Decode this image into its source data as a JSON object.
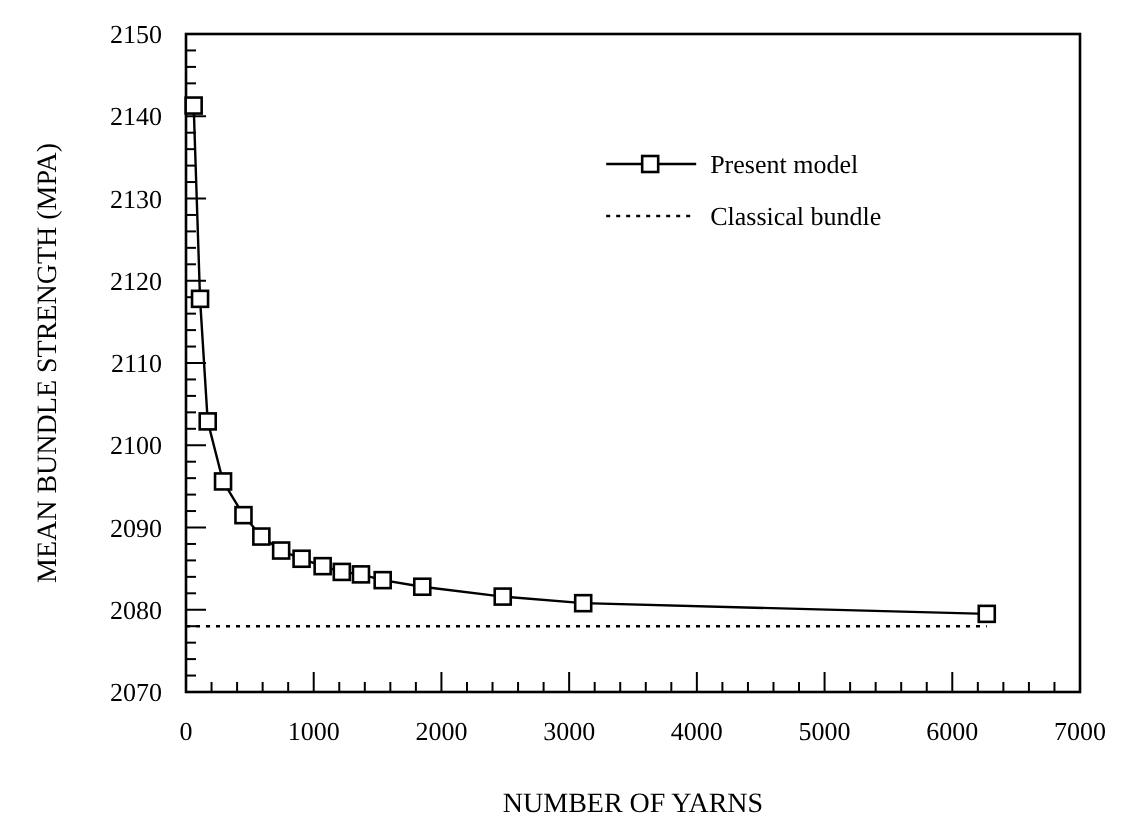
{
  "chart_data": {
    "type": "line",
    "xlabel": "NUMBER OF YARNS",
    "ylabel": "MEAN BUNDLE STRENGTH (MPA)",
    "xlim": [
      0,
      7000
    ],
    "ylim": [
      2070,
      2150
    ],
    "xticks": [
      0,
      {
        "value": 200,
        "label": null
      },
      {
        "value": 400,
        "label": null
      },
      {
        "value": 600,
        "label": null
      },
      {
        "value": 800,
        "label": null
      },
      1000,
      {
        "value": 1200,
        "label": null
      },
      {
        "value": 1400,
        "label": null
      },
      {
        "value": 1600,
        "label": null
      },
      {
        "value": 1800,
        "label": null
      },
      2000,
      {
        "value": 2200,
        "label": null
      },
      {
        "value": 2400,
        "label": null
      },
      {
        "value": 2600,
        "label": null
      },
      {
        "value": 2800,
        "label": null
      },
      3000,
      {
        "value": 3200,
        "label": null
      },
      {
        "value": 3400,
        "label": null
      },
      {
        "value": 3600,
        "label": null
      },
      {
        "value": 3800,
        "label": null
      },
      4000,
      {
        "value": 4200,
        "label": null
      },
      {
        "value": 4400,
        "label": null
      },
      {
        "value": 4600,
        "label": null
      },
      {
        "value": 4800,
        "label": null
      },
      5000,
      {
        "value": 5200,
        "label": null
      },
      {
        "value": 5400,
        "label": null
      },
      {
        "value": 5600,
        "label": null
      },
      {
        "value": 5800,
        "label": null
      },
      6000,
      {
        "value": 6200,
        "label": null
      },
      {
        "value": 6400,
        "label": null
      },
      {
        "value": 6600,
        "label": null
      },
      {
        "value": 6800,
        "label": null
      },
      7000
    ],
    "yticks": [
      2070,
      {
        "value": 2072,
        "label": null
      },
      {
        "value": 2074,
        "label": null
      },
      {
        "value": 2076,
        "label": null
      },
      {
        "value": 2078,
        "label": null
      },
      2080,
      {
        "value": 2082,
        "label": null
      },
      {
        "value": 2084,
        "label": null
      },
      {
        "value": 2086,
        "label": null
      },
      {
        "value": 2088,
        "label": null
      },
      2090,
      {
        "value": 2092,
        "label": null
      },
      {
        "value": 2094,
        "label": null
      },
      {
        "value": 2096,
        "label": null
      },
      {
        "value": 2098,
        "label": null
      },
      2100,
      {
        "value": 2102,
        "label": null
      },
      {
        "value": 2104,
        "label": null
      },
      {
        "value": 2106,
        "label": null
      },
      {
        "value": 2108,
        "label": null
      },
      2110,
      {
        "value": 2112,
        "label": null
      },
      {
        "value": 2114,
        "label": null
      },
      {
        "value": 2116,
        "label": null
      },
      {
        "value": 2118,
        "label": null
      },
      2120,
      {
        "value": 2122,
        "label": null
      },
      {
        "value": 2124,
        "label": null
      },
      {
        "value": 2126,
        "label": null
      },
      {
        "value": 2128,
        "label": null
      },
      2130,
      {
        "value": 2132,
        "label": null
      },
      {
        "value": 2134,
        "label": null
      },
      {
        "value": 2136,
        "label": null
      },
      {
        "value": 2138,
        "label": null
      },
      2140,
      {
        "value": 2142,
        "label": null
      },
      {
        "value": 2144,
        "label": null
      },
      {
        "value": 2146,
        "label": null
      },
      {
        "value": 2148,
        "label": null
      },
      2150
    ],
    "grid": false,
    "legend": "top right",
    "series": [
      {
        "name": "Present model",
        "color": "#000000",
        "marker": "square",
        "line_style": "solid",
        "x": [
          60,
          110,
          170,
          290,
          450,
          590,
          745,
          905,
          1070,
          1220,
          1370,
          1540,
          1850,
          2480,
          3110,
          6270
        ],
        "values": [
          2141.3,
          2117.8,
          2102.9,
          2095.6,
          2091.5,
          2088.9,
          2087.2,
          2086.2,
          2085.3,
          2084.6,
          2084.3,
          2083.6,
          2082.8,
          2081.6,
          2080.8,
          2079.5
        ]
      },
      {
        "name": "Classical bundle",
        "color": "#000000",
        "marker": "none",
        "line_style": "dotted",
        "x": [
          0,
          6270
        ],
        "values": [
          2078,
          2078
        ]
      }
    ]
  }
}
